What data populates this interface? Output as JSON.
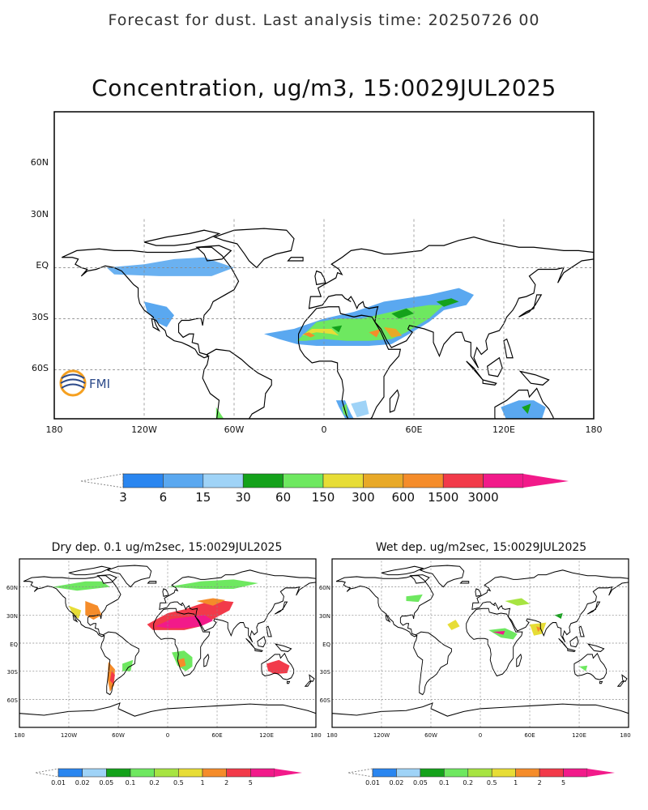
{
  "header": "Forecast for dust. Last analysis time: 20250726 00",
  "main_map": {
    "title": "Concentration, ug/m3, 15:0029JUL2025",
    "lon_ticks": [
      "180",
      "120W",
      "60W",
      "0",
      "60E",
      "120E",
      "180"
    ],
    "lat_ticks": [
      "60N",
      "30N",
      "EQ",
      "30S",
      "60S"
    ],
    "logo_text": "FMI",
    "colorbar": {
      "labels": [
        "3",
        "6",
        "15",
        "30",
        "60",
        "150",
        "300",
        "600",
        "1500",
        "3000"
      ],
      "colors": [
        "#2a86f0",
        "#5aa8f0",
        "#9fd3f7",
        "#14a21b",
        "#6ee860",
        "#e7dd36",
        "#e8a928",
        "#f58c2a",
        "#f23a4a",
        "#f21a8a"
      ]
    }
  },
  "dry_map": {
    "title": "Dry dep. 0.1 ug/m2sec, 15:0029JUL2025",
    "lon_ticks": [
      "180",
      "120W",
      "60W",
      "0",
      "60E",
      "120E",
      "180"
    ],
    "lat_ticks": [
      "60N",
      "30N",
      "EQ",
      "30S",
      "60S"
    ],
    "colorbar": {
      "labels": [
        "0.01",
        "0.02",
        "0.05",
        "0.1",
        "0.2",
        "0.5",
        "1",
        "2",
        "5"
      ],
      "colors": [
        "#2a86f0",
        "#9fd3f7",
        "#14a21b",
        "#6ee860",
        "#a7e442",
        "#e7dd36",
        "#f58c2a",
        "#f23a4a",
        "#f21a8a"
      ]
    }
  },
  "wet_map": {
    "title": "Wet dep. ug/m2sec, 15:0029JUL2025",
    "lon_ticks": [
      "180",
      "120W",
      "60W",
      "0",
      "60E",
      "120E",
      "180"
    ],
    "lat_ticks": [
      "60N",
      "30N",
      "EQ",
      "30S",
      "60S"
    ],
    "colorbar": {
      "labels": [
        "0.01",
        "0.02",
        "0.05",
        "0.1",
        "0.2",
        "0.5",
        "1",
        "2",
        "5"
      ],
      "colors": [
        "#2a86f0",
        "#9fd3f7",
        "#14a21b",
        "#6ee860",
        "#a7e442",
        "#e7dd36",
        "#f58c2a",
        "#f23a4a",
        "#f21a8a"
      ]
    }
  }
}
